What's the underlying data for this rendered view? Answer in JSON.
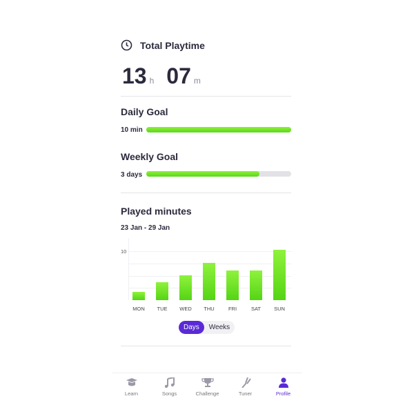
{
  "playtime": {
    "title": "Total Playtime",
    "hours": "13",
    "hours_unit": "h",
    "minutes": "07",
    "minutes_unit": "m",
    "icon": "clock-icon"
  },
  "daily_goal": {
    "title": "Daily Goal",
    "label": "10 min",
    "progress": 1.0
  },
  "weekly_goal": {
    "title": "Weekly Goal",
    "label": "3 days",
    "progress": 0.78
  },
  "played": {
    "title": "Played minutes",
    "range": "23 Jan - 29 Jan",
    "toggle": {
      "days": "Days",
      "weeks": "Weeks",
      "selected": "Days"
    }
  },
  "chart_data": {
    "type": "bar",
    "categories": [
      "MON",
      "TUE",
      "WED",
      "THU",
      "FRI",
      "SAT",
      "SUN"
    ],
    "values": [
      1.7,
      3.7,
      5.1,
      7.6,
      6.1,
      6.1,
      10.3
    ],
    "yticks": [
      "10"
    ],
    "ylim": [
      0,
      10
    ],
    "grid": true,
    "color": "#6ee02a"
  },
  "nav": {
    "items": [
      {
        "label": "Learn",
        "icon": "graduation-cap-icon"
      },
      {
        "label": "Songs",
        "icon": "music-note-icon"
      },
      {
        "label": "Challenge",
        "icon": "trophy-icon"
      },
      {
        "label": "Tuner",
        "icon": "tuning-fork-icon"
      },
      {
        "label": "Profile",
        "icon": "user-icon"
      }
    ],
    "active": "Profile"
  },
  "colors": {
    "accent": "#5a2ad6",
    "progress": "#6ee02a"
  }
}
